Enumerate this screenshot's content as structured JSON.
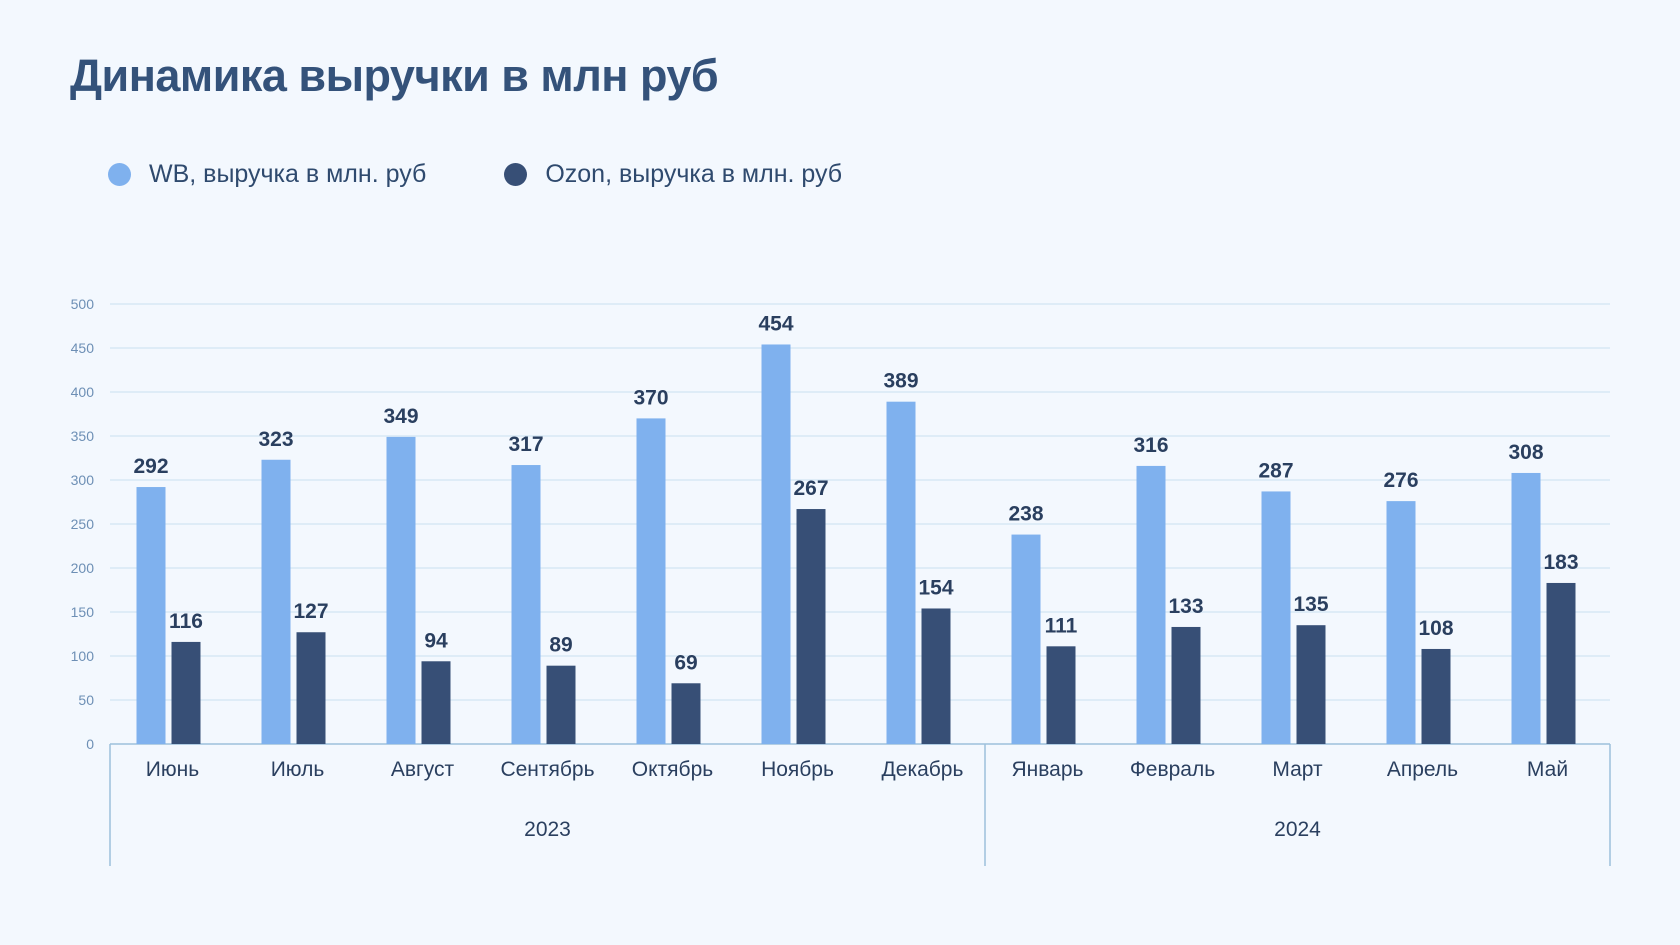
{
  "colors": {
    "wb": "#7fb1ee",
    "ozon": "#374f76",
    "grid": "#d2e4f3",
    "axis": "#9cc0dc",
    "label": "#2a3f5f",
    "tick": "#6d8fb5"
  },
  "chart_data": {
    "type": "bar",
    "title": "Динамика выручки в млн руб",
    "ylim": [
      0,
      500
    ],
    "y_ticks": [
      "0",
      "50",
      "100",
      "150",
      "200",
      "250",
      "300",
      "350",
      "400",
      "450",
      "500"
    ],
    "categories": [
      "Июнь",
      "Июль",
      "Август",
      "Сентябрь",
      "Октябрь",
      "Ноябрь",
      "Декабрь",
      "Январь",
      "Февраль",
      "Март",
      "Апрель",
      "Май"
    ],
    "groups": [
      {
        "label": "2023",
        "count": 7
      },
      {
        "label": "2024",
        "count": 5
      }
    ],
    "series": [
      {
        "name": "WB, выручка в млн. руб",
        "values": [
          292,
          323,
          349,
          317,
          370,
          454,
          389,
          238,
          316,
          287,
          276,
          308
        ]
      },
      {
        "name": "Ozon, выручка в млн. руб",
        "values": [
          116,
          127,
          94,
          89,
          69,
          267,
          154,
          111,
          133,
          135,
          108,
          183
        ]
      }
    ],
    "legend_position": "top-left",
    "grid": true
  }
}
